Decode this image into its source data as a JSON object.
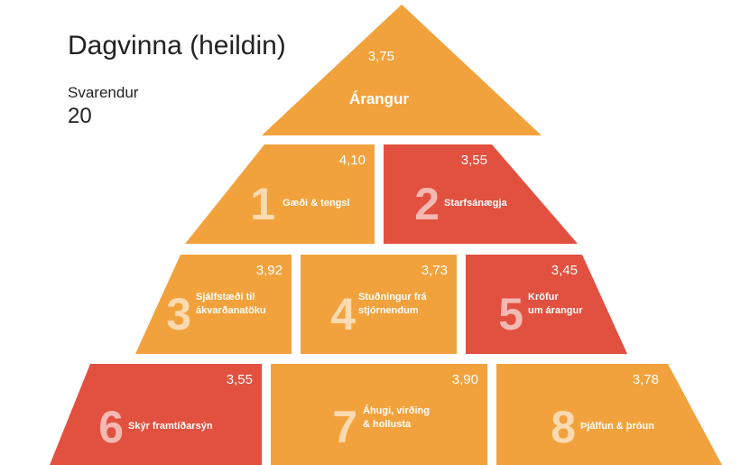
{
  "header": {
    "title": "Dagvinna (heildin)",
    "respondents_label": "Svarendur",
    "respondents": "20"
  },
  "top": {
    "score": "3,75",
    "label": "Árangur"
  },
  "blocks": [
    {
      "number": "1",
      "label": [
        "Gæði & tengsl"
      ],
      "score": "4,10"
    },
    {
      "number": "2",
      "label": [
        "Starfsánægja"
      ],
      "score": "3,55"
    },
    {
      "number": "3",
      "label": [
        "Sjálfstæði til",
        "ákvarðanatöku"
      ],
      "score": "3,92"
    },
    {
      "number": "4",
      "label": [
        "Stuðningur frá",
        "stjórnendum"
      ],
      "score": "3,73"
    },
    {
      "number": "5",
      "label": [
        "Kröfur",
        "um árangur"
      ],
      "score": "3,45"
    },
    {
      "number": "6",
      "label": [
        "Skýr framtíðarsýn"
      ],
      "score": "3,55"
    },
    {
      "number": "7",
      "label": [
        "Áhugi, virðing",
        "& hollusta"
      ],
      "score": "3,90"
    },
    {
      "number": "8",
      "label": [
        "Þjálfun & þróun"
      ],
      "score": "3,78"
    }
  ]
}
